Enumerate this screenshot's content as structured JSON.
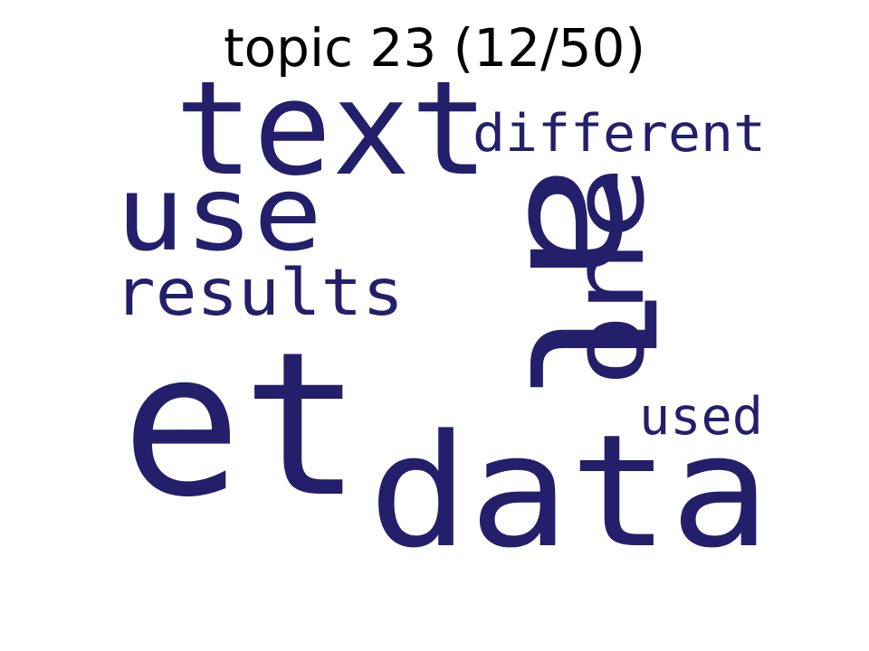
{
  "title": "topic 23 (12/50)",
  "word_color": "#231f6b",
  "title_color": "#000000",
  "words": {
    "et": "et",
    "al": "al",
    "text": "text",
    "data": "data",
    "use": "use",
    "one": "one",
    "different": "different",
    "results": "results",
    "used": "used"
  }
}
